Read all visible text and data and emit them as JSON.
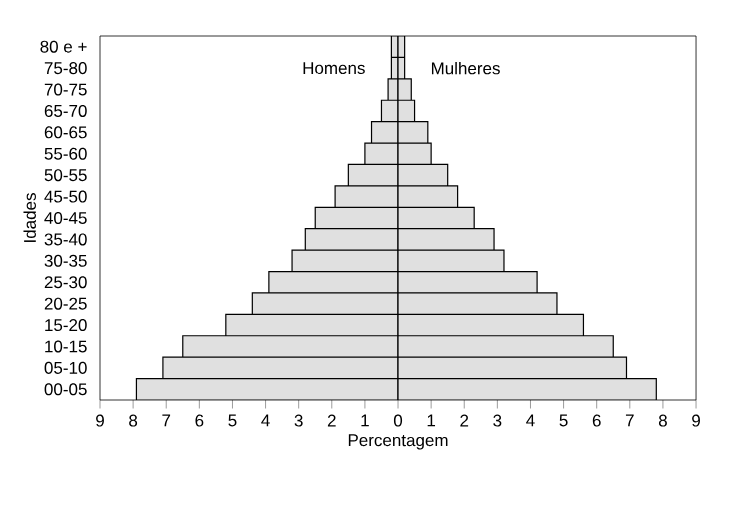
{
  "chart_data": {
    "type": "bar",
    "orientation": "horizontal",
    "xlabel": "Percentagem",
    "ylabel": "Idades",
    "categories": [
      "80 e +",
      "75-80",
      "70-75",
      "65-70",
      "60-65",
      "55-60",
      "50-55",
      "45-50",
      "40-45",
      "35-40",
      "30-35",
      "25-30",
      "20-25",
      "15-20",
      "10-15",
      "05-10",
      "00-05"
    ],
    "series": [
      {
        "name": "Homens",
        "color": "#e0e0e0",
        "values": [
          -0.2,
          -0.2,
          -0.3,
          -0.5,
          -0.8,
          -1.0,
          -1.5,
          -1.9,
          -2.5,
          -2.8,
          -3.2,
          -3.9,
          -4.4,
          -5.2,
          -6.5,
          -7.1,
          -7.9
        ]
      },
      {
        "name": "Mulheres",
        "color": "#e0e0e0",
        "values": [
          0.2,
          0.2,
          0.4,
          0.5,
          0.9,
          1.0,
          1.5,
          1.8,
          2.3,
          2.9,
          3.2,
          4.2,
          4.8,
          5.6,
          6.5,
          6.9,
          7.8
        ]
      }
    ],
    "xlim": [
      -9,
      9
    ],
    "xticks": [
      {
        "value": -9,
        "label": "9"
      },
      {
        "value": -8,
        "label": "8"
      },
      {
        "value": -7,
        "label": "7"
      },
      {
        "value": -6,
        "label": "6"
      },
      {
        "value": -5,
        "label": "5"
      },
      {
        "value": -4,
        "label": "4"
      },
      {
        "value": -3,
        "label": "3"
      },
      {
        "value": -2,
        "label": "2"
      },
      {
        "value": -1,
        "label": "1"
      },
      0,
      1,
      2,
      3,
      4,
      5,
      6,
      7,
      8,
      9
    ],
    "stacked": true,
    "grid": false
  }
}
